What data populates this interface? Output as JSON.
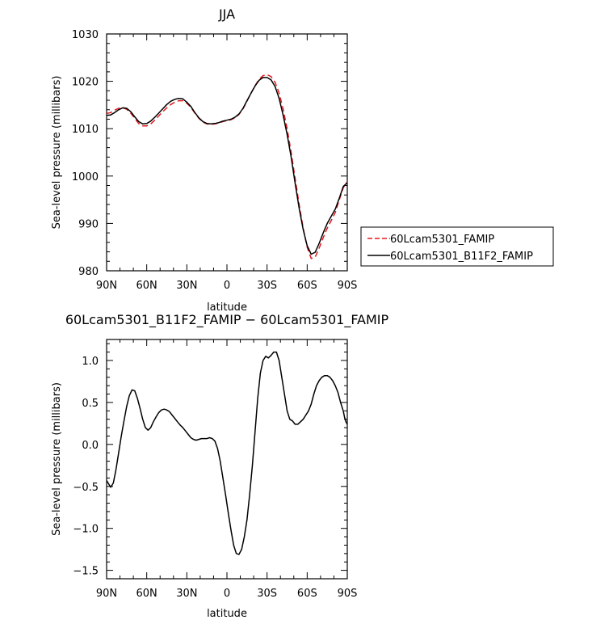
{
  "chart_data": [
    {
      "type": "line",
      "title": "JJA",
      "xlabel": "latitude",
      "ylabel": "Sea-level pressure (millibars)",
      "xlim": [
        90,
        -90
      ],
      "ylim": [
        980,
        1030
      ],
      "x_ticks": [
        {
          "value": 90,
          "label": "90N"
        },
        {
          "value": 60,
          "label": "60N"
        },
        {
          "value": 30,
          "label": "30N"
        },
        {
          "value": 0,
          "label": "0"
        },
        {
          "value": -30,
          "label": "30S"
        },
        {
          "value": -60,
          "label": "60S"
        },
        {
          "value": -90,
          "label": "90S"
        }
      ],
      "y_ticks": [
        980,
        990,
        1000,
        1010,
        1020,
        1030
      ],
      "legend_position": "outside-right",
      "series": [
        {
          "name": "60Lcam5301_FAMIP",
          "color": "#e3181e",
          "dash": "dashed",
          "x": [
            90,
            87,
            84,
            81,
            78,
            75,
            72,
            69,
            66,
            63,
            60,
            57,
            54,
            51,
            48,
            45,
            42,
            39,
            36,
            33,
            30,
            27,
            24,
            21,
            18,
            15,
            12,
            9,
            6,
            3,
            0,
            -3,
            -6,
            -9,
            -12,
            -15,
            -18,
            -21,
            -24,
            -27,
            -30,
            -33,
            -36,
            -39,
            -42,
            -45,
            -48,
            -51,
            -54,
            -57,
            -60,
            -63,
            -66,
            -69,
            -72,
            -75,
            -78,
            -81,
            -84,
            -87,
            -90
          ],
          "y": [
            1013.2,
            1013.4,
            1013.9,
            1014.3,
            1014.4,
            1014.1,
            1013.3,
            1012.2,
            1011.1,
            1010.6,
            1010.6,
            1011.0,
            1011.8,
            1012.7,
            1013.6,
            1014.4,
            1015.1,
            1015.6,
            1015.9,
            1015.9,
            1015.4,
            1014.5,
            1013.3,
            1012.2,
            1011.4,
            1011.0,
            1010.9,
            1011.0,
            1011.2,
            1011.5,
            1011.7,
            1011.9,
            1012.3,
            1013.0,
            1014.2,
            1015.8,
            1017.5,
            1019.1,
            1020.4,
            1021.2,
            1021.4,
            1021.0,
            1019.8,
            1017.5,
            1014.2,
            1010.0,
            1005.0,
            999.5,
            994.0,
            989.0,
            985.0,
            982.6,
            982.9,
            984.8,
            987.0,
            989.0,
            990.6,
            992.3,
            995.0,
            997.5,
            998.8
          ]
        },
        {
          "name": "60Lcam5301_B11F2_FAMIP",
          "color": "#000000",
          "dash": "solid",
          "x": [
            90,
            87,
            84,
            81,
            78,
            75,
            72,
            69,
            66,
            63,
            60,
            57,
            54,
            51,
            48,
            45,
            42,
            39,
            36,
            33,
            30,
            27,
            24,
            21,
            18,
            15,
            12,
            9,
            6,
            3,
            0,
            -3,
            -6,
            -9,
            -12,
            -15,
            -18,
            -21,
            -24,
            -27,
            -30,
            -33,
            -36,
            -39,
            -42,
            -45,
            -48,
            -51,
            -54,
            -57,
            -60,
            -63,
            -66,
            -69,
            -72,
            -75,
            -78,
            -81,
            -84,
            -87,
            -90
          ],
          "y": [
            1012.8,
            1012.9,
            1013.4,
            1014.0,
            1014.4,
            1014.3,
            1013.6,
            1012.5,
            1011.5,
            1011.0,
            1011.1,
            1011.6,
            1012.4,
            1013.3,
            1014.2,
            1015.1,
            1015.8,
            1016.2,
            1016.4,
            1016.3,
            1015.6,
            1014.7,
            1013.4,
            1012.3,
            1011.5,
            1011.1,
            1011.0,
            1011.1,
            1011.3,
            1011.6,
            1011.8,
            1012.0,
            1012.4,
            1013.1,
            1014.3,
            1015.9,
            1017.5,
            1019.0,
            1020.2,
            1020.8,
            1020.8,
            1020.3,
            1018.9,
            1016.4,
            1012.9,
            1008.8,
            1004.0,
            998.5,
            993.2,
            988.7,
            985.3,
            983.5,
            983.9,
            985.8,
            988.0,
            990.0,
            991.5,
            993.0,
            995.3,
            997.8,
            998.6
          ]
        }
      ]
    },
    {
      "type": "line",
      "title": "60Lcam5301_B11F2_FAMIP − 60Lcam5301_FAMIP",
      "xlabel": "latitude",
      "ylabel": "Sea-level pressure (millibars)",
      "xlim": [
        90,
        -90
      ],
      "ylim": [
        -1.6,
        1.25
      ],
      "x_ticks": [
        {
          "value": 90,
          "label": "90N"
        },
        {
          "value": 60,
          "label": "60N"
        },
        {
          "value": 30,
          "label": "30N"
        },
        {
          "value": 0,
          "label": "0"
        },
        {
          "value": -30,
          "label": "30S"
        },
        {
          "value": -60,
          "label": "60S"
        },
        {
          "value": -90,
          "label": "90S"
        }
      ],
      "y_ticks": [
        {
          "value": -1.5,
          "label": "−1.5"
        },
        {
          "value": -1.0,
          "label": "−1.0"
        },
        {
          "value": -0.5,
          "label": "−0.5"
        },
        {
          "value": 0.0,
          "label": "0.0"
        },
        {
          "value": 0.5,
          "label": "0.5"
        },
        {
          "value": 1.0,
          "label": "1.0"
        }
      ],
      "series": [
        {
          "color": "#000000",
          "dash": "solid",
          "x": [
            90,
            87,
            85,
            83,
            81,
            79,
            77,
            75,
            73,
            71,
            69,
            67,
            65,
            63,
            61,
            59,
            57,
            55,
            53,
            51,
            49,
            47,
            45,
            43,
            41,
            39,
            37,
            35,
            33,
            31,
            29,
            27,
            25,
            23,
            21,
            19,
            17,
            15,
            13,
            11,
            9,
            7,
            5,
            3,
            1,
            -1,
            -3,
            -5,
            -7,
            -9,
            -11,
            -13,
            -15,
            -17,
            -19,
            -21,
            -23,
            -25,
            -27,
            -29,
            -31,
            -33,
            -35,
            -37,
            -39,
            -41,
            -43,
            -45,
            -47,
            -49,
            -51,
            -53,
            -55,
            -57,
            -59,
            -61,
            -63,
            -65,
            -67,
            -69,
            -71,
            -73,
            -75,
            -77,
            -79,
            -81,
            -83,
            -85,
            -87,
            -88,
            -89,
            -90
          ],
          "y": [
            -0.43,
            -0.51,
            -0.46,
            -0.3,
            -0.1,
            0.1,
            0.28,
            0.45,
            0.58,
            0.65,
            0.64,
            0.55,
            0.43,
            0.3,
            0.2,
            0.17,
            0.2,
            0.27,
            0.33,
            0.38,
            0.41,
            0.42,
            0.41,
            0.39,
            0.35,
            0.31,
            0.27,
            0.23,
            0.2,
            0.16,
            0.12,
            0.08,
            0.06,
            0.05,
            0.06,
            0.07,
            0.07,
            0.07,
            0.08,
            0.07,
            0.04,
            -0.05,
            -0.2,
            -0.4,
            -0.6,
            -0.82,
            -1.02,
            -1.2,
            -1.3,
            -1.31,
            -1.25,
            -1.1,
            -0.9,
            -0.6,
            -0.25,
            0.15,
            0.55,
            0.85,
            1.0,
            1.05,
            1.03,
            1.06,
            1.1,
            1.1,
            1.0,
            0.8,
            0.6,
            0.4,
            0.3,
            0.28,
            0.24,
            0.24,
            0.27,
            0.3,
            0.35,
            0.4,
            0.48,
            0.6,
            0.7,
            0.76,
            0.8,
            0.82,
            0.82,
            0.8,
            0.76,
            0.7,
            0.62,
            0.5,
            0.4,
            0.32,
            0.27,
            0.24
          ]
        }
      ]
    }
  ]
}
